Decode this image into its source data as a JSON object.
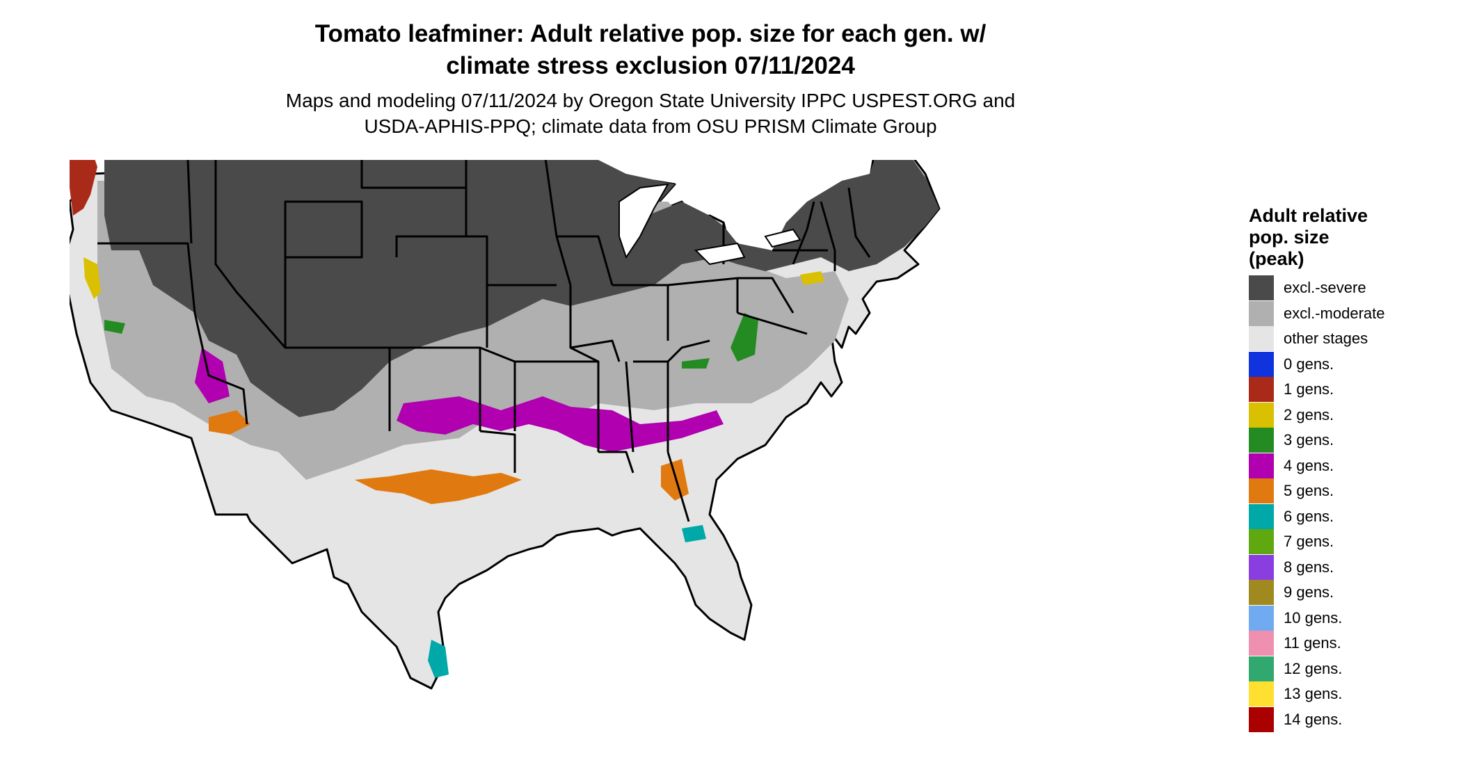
{
  "title": {
    "line1": "Tomato leafminer: Adult relative pop. size for each gen. w/",
    "line2": "climate stress exclusion 07/11/2024"
  },
  "subtitle": {
    "line1": "Maps and modeling 07/11/2024 by Oregon State University IPPC USPEST.ORG and",
    "line2": "USDA-APHIS-PPQ; climate data from OSU PRISM Climate Group"
  },
  "legend": {
    "title_lines": [
      "Adult relative",
      "pop. size",
      "(peak)"
    ],
    "items": [
      {
        "label": "excl.-severe",
        "color": "#4a4a4a"
      },
      {
        "label": "excl.-moderate",
        "color": "#b0b0b0"
      },
      {
        "label": "other stages",
        "color": "#e5e5e5"
      },
      {
        "label": "0 gens.",
        "color": "#1133dd"
      },
      {
        "label": "1 gens.",
        "color": "#aa2a1a"
      },
      {
        "label": "2 gens.",
        "color": "#d9c000"
      },
      {
        "label": "3 gens.",
        "color": "#238b22"
      },
      {
        "label": "4 gens.",
        "color": "#b000b0"
      },
      {
        "label": "5 gens.",
        "color": "#e07a10"
      },
      {
        "label": "6 gens.",
        "color": "#00a8a8"
      },
      {
        "label": "7 gens.",
        "color": "#60a810"
      },
      {
        "label": "8 gens.",
        "color": "#8a3ee0"
      },
      {
        "label": "9 gens.",
        "color": "#a08a20"
      },
      {
        "label": "10 gens.",
        "color": "#70aaf0"
      },
      {
        "label": "11 gens.",
        "color": "#f090b0"
      },
      {
        "label": "12 gens.",
        "color": "#30a870"
      },
      {
        "label": "13 gens.",
        "color": "#ffe030"
      },
      {
        "label": "14 gens.",
        "color": "#aa0000"
      }
    ]
  }
}
